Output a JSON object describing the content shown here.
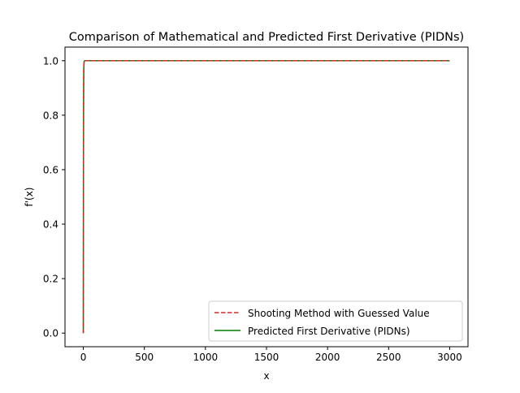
{
  "chart_data": {
    "type": "line",
    "title": "Comparison of Mathematical and Predicted First Derivative (PIDNs)",
    "xlabel": "x",
    "ylabel": "f'(x)",
    "xlim": [
      -150,
      3150
    ],
    "ylim": [
      -0.05,
      1.05
    ],
    "xticks": [
      0,
      500,
      1000,
      1500,
      2000,
      2500,
      3000
    ],
    "yticks": [
      0.0,
      0.2,
      0.4,
      0.6,
      0.8,
      1.0
    ],
    "xtick_labels": [
      "0",
      "500",
      "1000",
      "1500",
      "2000",
      "2500",
      "3000"
    ],
    "ytick_labels": [
      "0.0",
      "0.2",
      "0.4",
      "0.6",
      "0.8",
      "1.0"
    ],
    "grid": false,
    "legend_position": "lower-right",
    "series": [
      {
        "name": "Shooting Method with Guessed Value",
        "color": "#d62728",
        "style": "dashed",
        "x": [
          0,
          1,
          2,
          3,
          4,
          6,
          8,
          12,
          20,
          3000
        ],
        "y": [
          0.0,
          0.55,
          0.82,
          0.93,
          0.975,
          0.995,
          0.999,
          1.0,
          1.0,
          1.0
        ]
      },
      {
        "name": "Predicted First Derivative (PIDNs)",
        "color": "#008000",
        "style": "solid",
        "x": [
          0,
          1,
          2,
          3,
          4,
          6,
          8,
          12,
          20,
          3000
        ],
        "y": [
          0.0,
          0.55,
          0.82,
          0.93,
          0.975,
          0.995,
          0.999,
          1.0,
          1.0,
          1.0
        ]
      }
    ]
  }
}
